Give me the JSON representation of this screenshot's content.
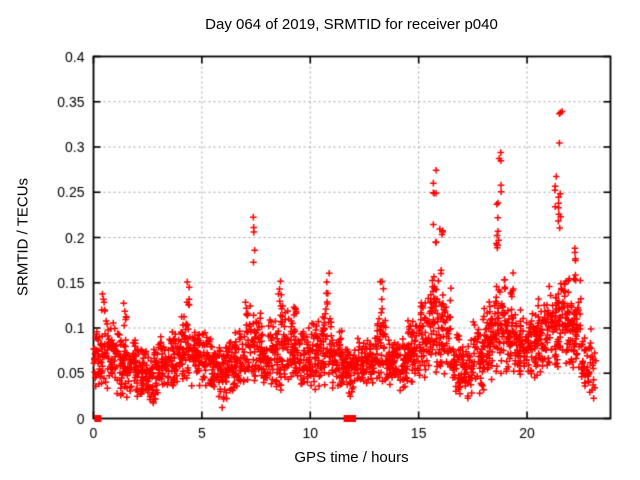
{
  "chart_data": {
    "type": "scatter",
    "title": "Day 064 of 2019, SRMTID for receiver p040",
    "xlabel": "GPS time / hours",
    "ylabel": "SRMTID / TECUs",
    "marker": "plus",
    "marker_color": "#ff0000",
    "axis_color": "#000000",
    "grid": true,
    "grid_color": "#a4a4a4",
    "background": "#ffffff",
    "legend": "none",
    "xlim": [
      0,
      23.85
    ],
    "ylim": [
      0,
      0.4
    ],
    "xticks": [
      {
        "v": 0,
        "label": "0"
      },
      {
        "v": 5,
        "label": "5"
      },
      {
        "v": 10,
        "label": "10"
      },
      {
        "v": 15,
        "label": "15"
      },
      {
        "v": 20,
        "label": "20"
      }
    ],
    "yticks": [
      {
        "v": 0,
        "label": "0"
      },
      {
        "v": 0.05,
        "label": "0.05"
      },
      {
        "v": 0.1,
        "label": "0.1"
      },
      {
        "v": 0.15,
        "label": "0.15"
      },
      {
        "v": 0.2,
        "label": "0.2"
      },
      {
        "v": 0.25,
        "label": "0.25"
      },
      {
        "v": 0.3,
        "label": "0.3"
      },
      {
        "v": 0.35,
        "label": "0.35"
      },
      {
        "v": 0.4,
        "label": "0.4"
      }
    ],
    "zero_value_points": {
      "style": "filled-square",
      "hours": [
        0.2,
        11.7,
        11.95
      ]
    },
    "scatter_bands_format": "[hour_start, hour_end, value_center, value_spread, count]",
    "scatter_bands": [
      [
        0.0,
        0.5,
        0.065,
        0.035,
        50
      ],
      [
        0.5,
        1.0,
        0.07,
        0.04,
        50
      ],
      [
        1.0,
        1.5,
        0.065,
        0.045,
        50
      ],
      [
        1.5,
        2.0,
        0.055,
        0.035,
        50
      ],
      [
        2.0,
        2.5,
        0.05,
        0.032,
        50
      ],
      [
        2.5,
        3.0,
        0.048,
        0.035,
        50
      ],
      [
        3.0,
        3.5,
        0.06,
        0.032,
        50
      ],
      [
        3.5,
        4.0,
        0.065,
        0.035,
        50
      ],
      [
        4.0,
        4.5,
        0.075,
        0.04,
        50
      ],
      [
        4.5,
        5.0,
        0.07,
        0.04,
        50
      ],
      [
        5.0,
        5.5,
        0.065,
        0.035,
        50
      ],
      [
        5.5,
        6.0,
        0.055,
        0.035,
        50
      ],
      [
        6.0,
        6.5,
        0.055,
        0.04,
        50
      ],
      [
        6.5,
        7.0,
        0.065,
        0.04,
        50
      ],
      [
        7.0,
        7.5,
        0.08,
        0.05,
        50
      ],
      [
        7.5,
        8.0,
        0.075,
        0.045,
        50
      ],
      [
        8.0,
        8.5,
        0.07,
        0.042,
        50
      ],
      [
        8.5,
        9.0,
        0.08,
        0.05,
        50
      ],
      [
        9.0,
        9.5,
        0.075,
        0.045,
        50
      ],
      [
        9.5,
        10.0,
        0.07,
        0.04,
        50
      ],
      [
        10.0,
        10.5,
        0.07,
        0.04,
        50
      ],
      [
        10.5,
        11.0,
        0.08,
        0.05,
        50
      ],
      [
        11.0,
        11.5,
        0.065,
        0.04,
        50
      ],
      [
        11.5,
        12.0,
        0.055,
        0.035,
        50
      ],
      [
        12.0,
        12.5,
        0.06,
        0.035,
        45
      ],
      [
        12.5,
        13.0,
        0.065,
        0.035,
        45
      ],
      [
        13.0,
        13.5,
        0.08,
        0.045,
        50
      ],
      [
        13.5,
        14.0,
        0.06,
        0.035,
        50
      ],
      [
        14.0,
        14.5,
        0.06,
        0.035,
        50
      ],
      [
        14.5,
        15.0,
        0.075,
        0.04,
        50
      ],
      [
        15.0,
        15.5,
        0.09,
        0.05,
        55
      ],
      [
        15.5,
        16.0,
        0.105,
        0.06,
        55
      ],
      [
        16.0,
        16.5,
        0.09,
        0.055,
        50
      ],
      [
        16.5,
        17.0,
        0.06,
        0.04,
        45
      ],
      [
        17.0,
        17.5,
        0.055,
        0.038,
        45
      ],
      [
        17.5,
        18.0,
        0.07,
        0.045,
        50
      ],
      [
        18.0,
        18.5,
        0.09,
        0.05,
        55
      ],
      [
        18.5,
        19.0,
        0.105,
        0.06,
        55
      ],
      [
        19.0,
        19.5,
        0.09,
        0.05,
        50
      ],
      [
        19.5,
        20.0,
        0.08,
        0.045,
        55
      ],
      [
        20.0,
        20.5,
        0.085,
        0.045,
        55
      ],
      [
        20.5,
        21.0,
        0.09,
        0.05,
        55
      ],
      [
        21.0,
        21.5,
        0.1,
        0.055,
        55
      ],
      [
        21.5,
        22.0,
        0.11,
        0.06,
        55
      ],
      [
        22.0,
        22.5,
        0.1,
        0.06,
        55
      ],
      [
        22.5,
        23.0,
        0.06,
        0.04,
        40
      ],
      [
        23.0,
        23.2,
        0.05,
        0.03,
        12
      ]
    ],
    "spike_columns_format": "[hour, value_min, value_max, count]",
    "spike_columns": [
      [
        0.45,
        0.115,
        0.138,
        6
      ],
      [
        1.45,
        0.108,
        0.128,
        5
      ],
      [
        2.8,
        0.008,
        0.022,
        4
      ],
      [
        4.35,
        0.12,
        0.152,
        6
      ],
      [
        6.0,
        0.01,
        0.025,
        3
      ],
      [
        7.38,
        0.16,
        0.237,
        5
      ],
      [
        8.6,
        0.12,
        0.152,
        5
      ],
      [
        9.3,
        0.115,
        0.14,
        4
      ],
      [
        10.8,
        0.12,
        0.162,
        6
      ],
      [
        13.3,
        0.12,
        0.152,
        5
      ],
      [
        15.75,
        0.19,
        0.28,
        8
      ],
      [
        16.05,
        0.15,
        0.21,
        6
      ],
      [
        18.65,
        0.18,
        0.245,
        10
      ],
      [
        18.75,
        0.25,
        0.312,
        5
      ],
      [
        19.3,
        0.13,
        0.17,
        5
      ],
      [
        21.3,
        0.23,
        0.27,
        4
      ],
      [
        21.5,
        0.2,
        0.255,
        8
      ],
      [
        21.55,
        0.285,
        0.363,
        4
      ],
      [
        22.2,
        0.14,
        0.19,
        8
      ]
    ],
    "seed": 64
  }
}
